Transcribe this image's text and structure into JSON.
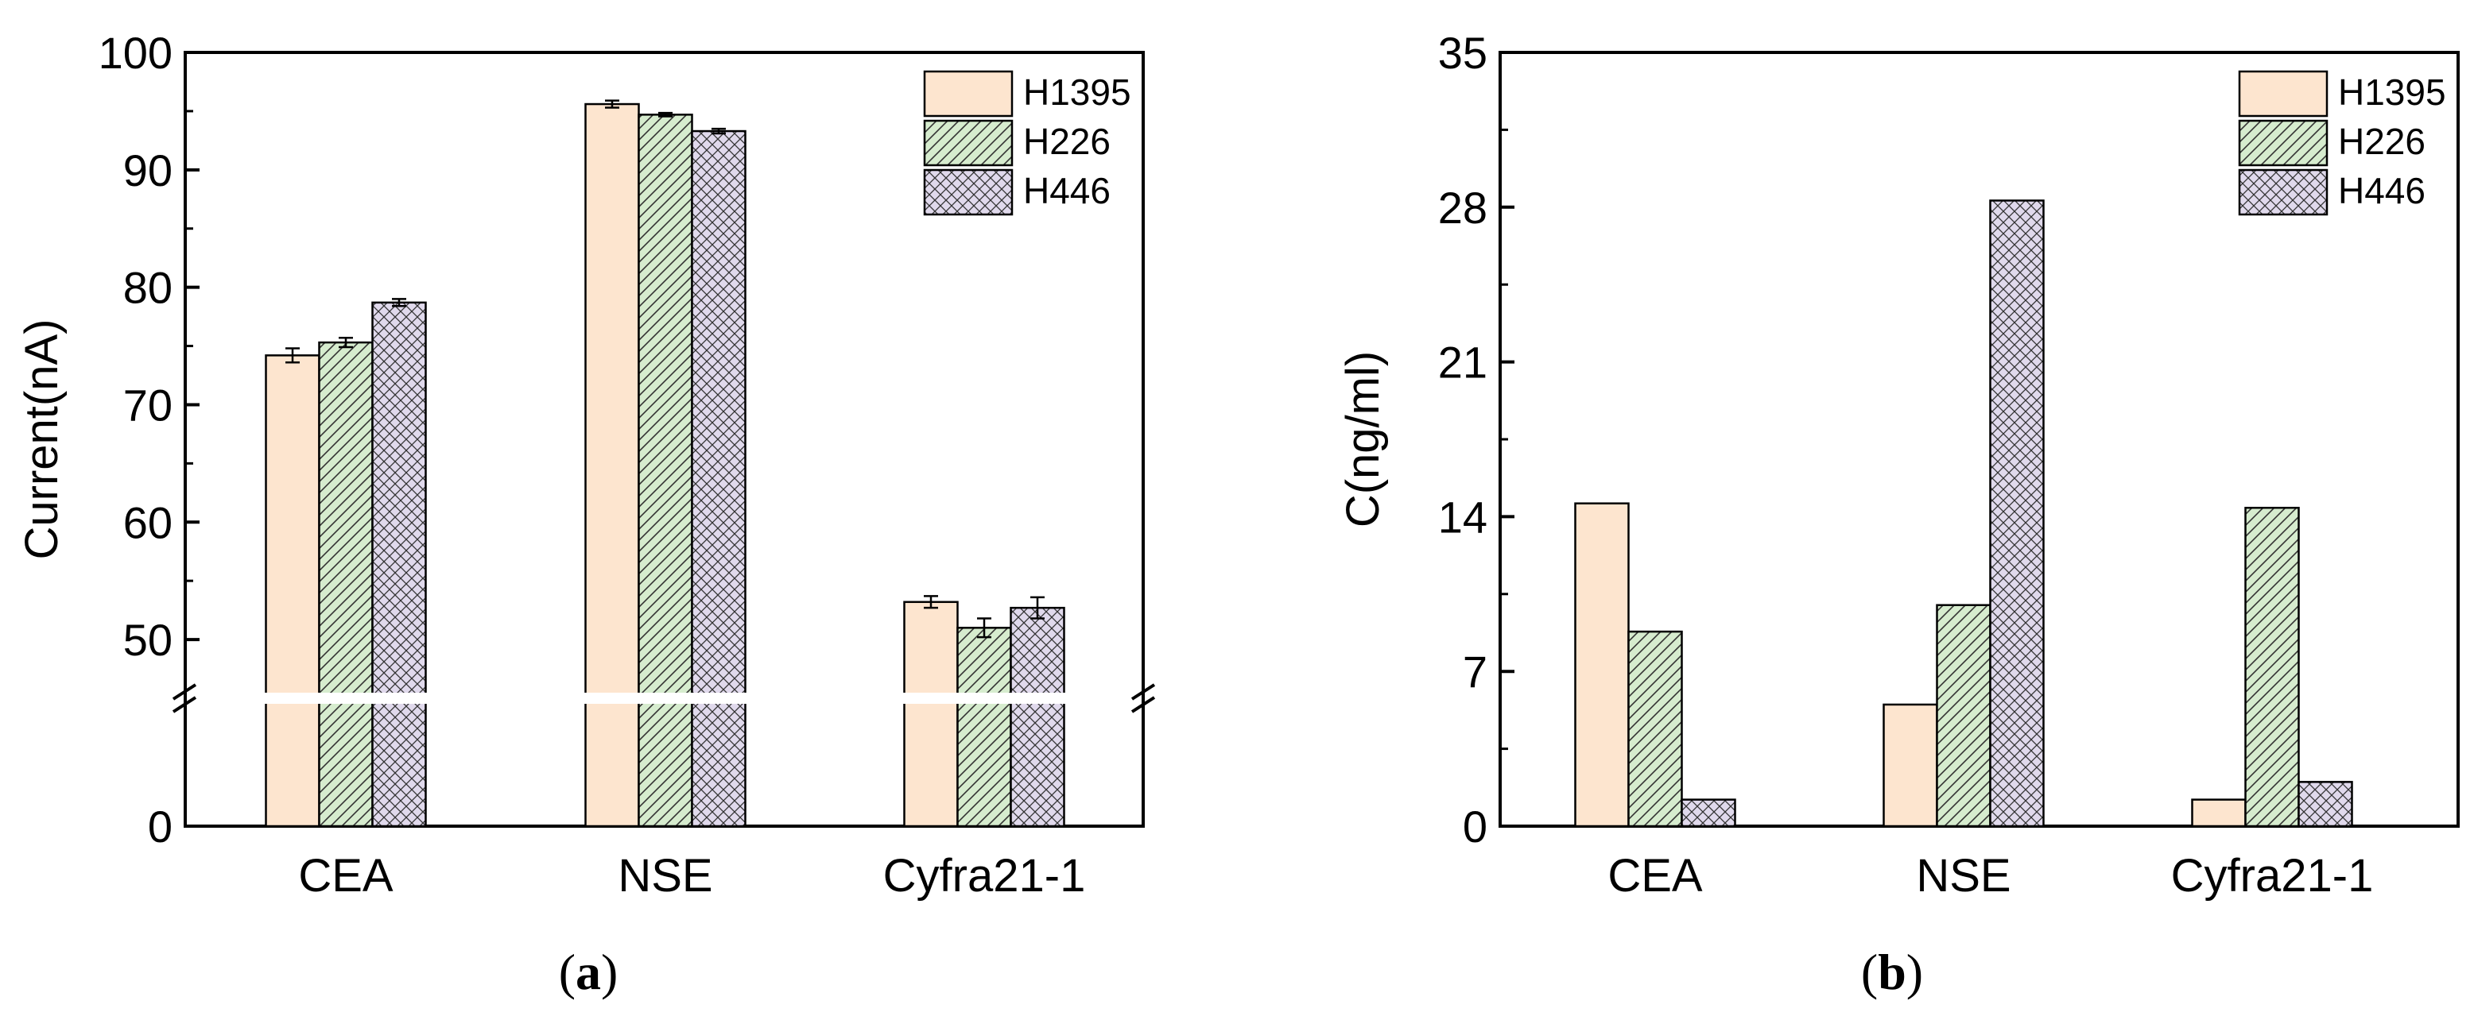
{
  "chart_data": [
    {
      "panel": "(a)",
      "panel_letter": "a",
      "type": "bar",
      "categories": [
        "CEA",
        "NSE",
        "Cyfra21-1"
      ],
      "ylabel": "Current(nA)",
      "ylim": [
        0,
        100
      ],
      "axis_break": {
        "lower": [
          0,
          45
        ],
        "upper": [
          45,
          100
        ]
      },
      "yticks": [
        0,
        50,
        60,
        70,
        80,
        90,
        100
      ],
      "legend_position": "top-right",
      "series": [
        {
          "name": "H1395",
          "values": [
            74.2,
            95.6,
            53.2
          ],
          "errors": [
            0.6,
            0.3,
            0.5
          ]
        },
        {
          "name": "H226",
          "values": [
            75.3,
            94.7,
            51.0
          ],
          "errors": [
            0.4,
            0.15,
            0.8
          ]
        },
        {
          "name": "H446",
          "values": [
            78.7,
            93.3,
            52.7
          ],
          "errors": [
            0.3,
            0.2,
            0.9
          ]
        }
      ]
    },
    {
      "panel": "(b)",
      "panel_letter": "b",
      "type": "bar",
      "categories": [
        "CEA",
        "NSE",
        "Cyfra21-1"
      ],
      "ylabel": "C(ng/ml)",
      "ylim": [
        0,
        35
      ],
      "yticks": [
        0,
        7,
        14,
        21,
        28,
        35
      ],
      "legend_position": "top-right",
      "series": [
        {
          "name": "H1395",
          "values": [
            14.6,
            5.5,
            1.2
          ]
        },
        {
          "name": "H226",
          "values": [
            8.8,
            10.0,
            14.4
          ]
        },
        {
          "name": "H446",
          "values": [
            1.2,
            28.3,
            2.0
          ]
        }
      ]
    }
  ],
  "style": {
    "colors": {
      "H1395": "#fde5cf",
      "H226": "#d6ecce",
      "H446": "#e0d9ec"
    },
    "patterns": {
      "H1395": "none",
      "H226": "diagonal-hatch",
      "H446": "crosshatch"
    }
  }
}
